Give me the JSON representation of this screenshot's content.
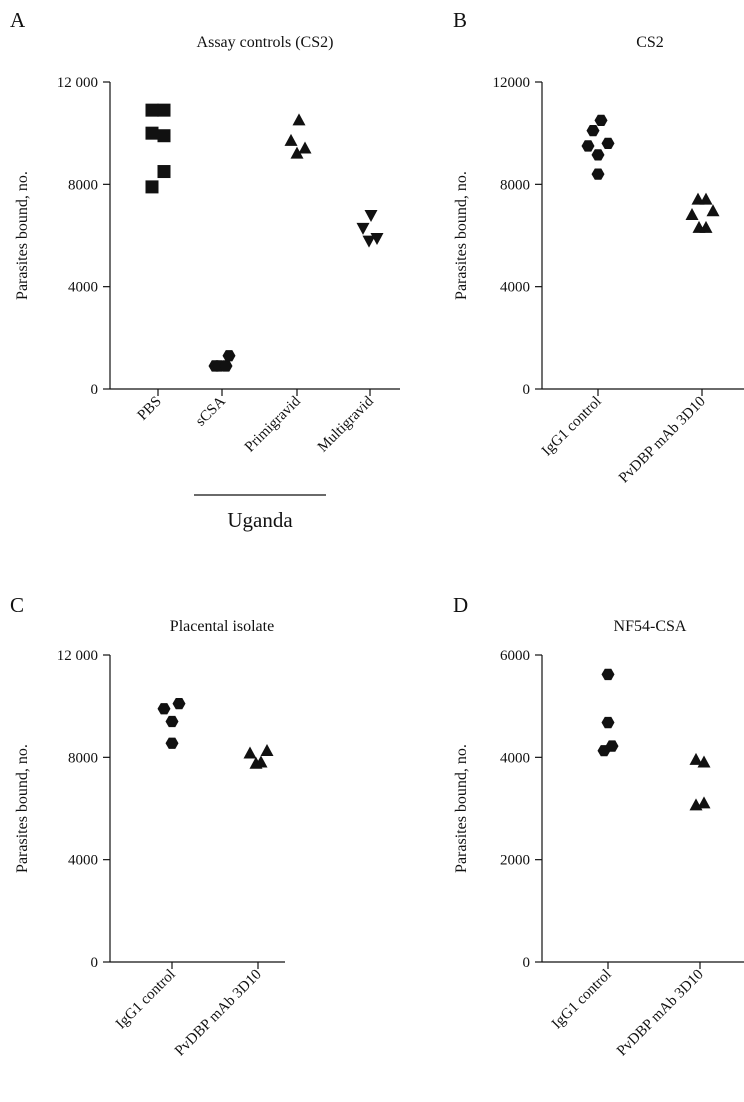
{
  "chart_data": [
    {
      "panel": "A",
      "type": "scatter",
      "title": "Assay controls (CS2)",
      "ylabel": "Parasites bound, no.",
      "ylim": [
        0,
        12000
      ],
      "yticks": [
        0,
        4000,
        8000,
        12000
      ],
      "ytick_labels": [
        "0",
        "4000",
        "8000",
        "12 000"
      ],
      "categories": [
        "PBS",
        "sCSA",
        "Primigravid",
        "Multigravid"
      ],
      "group_label": "Uganda",
      "series": [
        {
          "category": "PBS",
          "marker": "square",
          "points": [
            [
              -0.3,
              10900
            ],
            [
              0.3,
              10900
            ],
            [
              -0.3,
              10000
            ],
            [
              0.3,
              9900
            ],
            [
              0.3,
              8500
            ],
            [
              -0.3,
              7900
            ]
          ]
        },
        {
          "category": "sCSA",
          "marker": "hexagon",
          "points": [
            [
              -0.35,
              900
            ],
            [
              -0.15,
              900
            ],
            [
              0.2,
              900
            ],
            [
              0.35,
              1300
            ]
          ]
        },
        {
          "category": "Primigravid",
          "marker": "triangle-up",
          "points": [
            [
              -0.3,
              9700
            ],
            [
              0.1,
              10500
            ],
            [
              0.0,
              9200
            ],
            [
              0.4,
              9400
            ]
          ]
        },
        {
          "category": "Multigravid",
          "marker": "triangle-down",
          "points": [
            [
              -0.35,
              6300
            ],
            [
              0.05,
              6800
            ],
            [
              -0.05,
              5800
            ],
            [
              0.35,
              5900
            ]
          ]
        }
      ]
    },
    {
      "panel": "B",
      "type": "scatter",
      "title": "CS2",
      "ylabel": "Parasites bound, no.",
      "ylim": [
        0,
        12000
      ],
      "yticks": [
        0,
        4000,
        8000,
        12000
      ],
      "ytick_labels": [
        "0",
        "4000",
        "8000",
        "12000"
      ],
      "categories": [
        "IgG1 control",
        "PvDBP mAb 3D10"
      ],
      "series": [
        {
          "category": "IgG1 control",
          "marker": "hexagon",
          "points": [
            [
              -0.5,
              9500
            ],
            [
              -0.25,
              10100
            ],
            [
              0.15,
              10500
            ],
            [
              0.0,
              9150
            ],
            [
              0.5,
              9600
            ],
            [
              0.0,
              8400
            ]
          ]
        },
        {
          "category": "PvDBP mAb 3D10",
          "marker": "triangle-up",
          "points": [
            [
              -0.5,
              6800
            ],
            [
              -0.2,
              7400
            ],
            [
              0.2,
              7400
            ],
            [
              0.55,
              6950
            ],
            [
              -0.15,
              6300
            ],
            [
              0.2,
              6300
            ]
          ]
        }
      ]
    },
    {
      "panel": "C",
      "type": "scatter",
      "title": "Placental isolate",
      "ylabel": "Parasites bound, no.",
      "ylim": [
        0,
        12000
      ],
      "yticks": [
        0,
        4000,
        8000,
        12000
      ],
      "ytick_labels": [
        "0",
        "4000",
        "8000",
        "12 000"
      ],
      "categories": [
        "IgG1 control",
        "PvDBP mAb 3D10"
      ],
      "series": [
        {
          "category": "IgG1 control",
          "marker": "hexagon",
          "points": [
            [
              -0.4,
              9900
            ],
            [
              0.0,
              9400
            ],
            [
              0.35,
              10100
            ],
            [
              0.0,
              8550
            ]
          ]
        },
        {
          "category": "PvDBP mAb 3D10",
          "marker": "triangle-up",
          "points": [
            [
              -0.4,
              8150
            ],
            [
              -0.1,
              7750
            ],
            [
              0.15,
              7800
            ],
            [
              0.45,
              8250
            ]
          ]
        }
      ]
    },
    {
      "panel": "D",
      "type": "scatter",
      "title": "NF54-CSA",
      "ylabel": "Parasites bound, no.",
      "ylim": [
        0,
        6000
      ],
      "yticks": [
        0,
        2000,
        4000,
        6000
      ],
      "ytick_labels": [
        "0",
        "2000",
        "4000",
        "6000"
      ],
      "categories": [
        "IgG1 control",
        "PvDBP mAb 3D10"
      ],
      "series": [
        {
          "category": "IgG1 control",
          "marker": "hexagon",
          "points": [
            [
              0.0,
              5620
            ],
            [
              0.0,
              4680
            ],
            [
              -0.2,
              4130
            ],
            [
              0.2,
              4220
            ]
          ]
        },
        {
          "category": "PvDBP mAb 3D10",
          "marker": "triangle-up",
          "points": [
            [
              -0.2,
              3950
            ],
            [
              0.2,
              3900
            ],
            [
              -0.2,
              3060
            ],
            [
              0.2,
              3100
            ]
          ]
        }
      ]
    }
  ]
}
